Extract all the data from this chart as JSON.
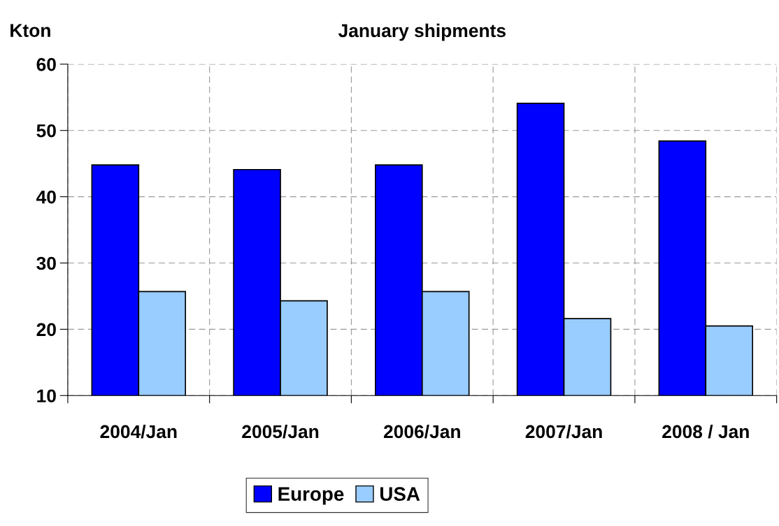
{
  "chart_data": {
    "type": "bar",
    "title": "January shipments",
    "ylabel": "Kton",
    "categories": [
      "2004/Jan",
      "2005/Jan",
      "2006/Jan",
      "2007/Jan",
      "2008 / Jan"
    ],
    "series": [
      {
        "name": "Europe",
        "color": "#0000ff",
        "values": [
          44.8,
          44.1,
          44.8,
          54.1,
          48.4
        ]
      },
      {
        "name": "USA",
        "color": "#99ccff",
        "values": [
          25.7,
          24.3,
          25.7,
          21.6,
          20.5
        ]
      }
    ],
    "ylim": [
      10,
      60
    ],
    "yticks": [
      10,
      20,
      30,
      40,
      50,
      60
    ],
    "grid": true,
    "legend": "bottom"
  }
}
